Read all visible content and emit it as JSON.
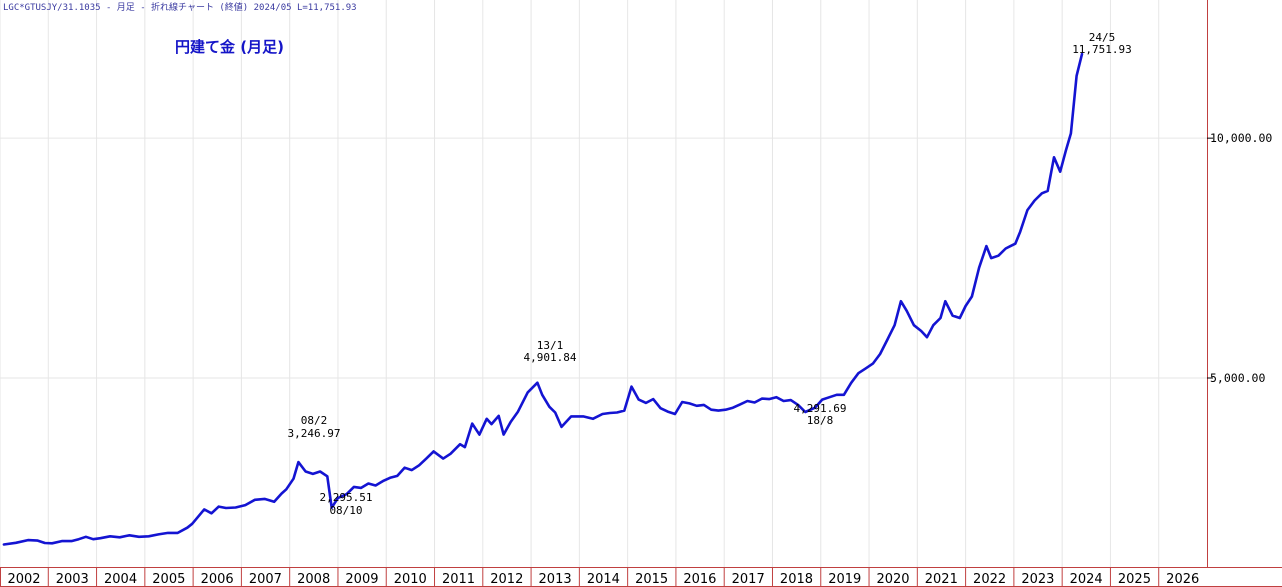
{
  "header": {
    "info_line": "LGC*GTUSJY/31.1035 - 月足 - 折れ線チャート (終値) 2024/05 L=11,751.93"
  },
  "colors": {
    "line": "#1414d2",
    "frame": "#c04040",
    "grid": "#e6e6e6",
    "title": "#1515c8"
  },
  "chart_data": {
    "type": "line",
    "title": "円建て金 (月足)",
    "xlabel": "",
    "ylabel": "",
    "x_range": [
      2001.92,
      2026.92
    ],
    "ylim": [
      1060,
      12880
    ],
    "grid": "on",
    "y_axis_side": "right",
    "y_tick_values": [
      5000,
      10000
    ],
    "y_tick_labels": [
      "5,000.00",
      "10,000.00"
    ],
    "x_tick_labels": [
      "2002",
      "2003",
      "2004",
      "2005",
      "2006",
      "2007",
      "2008",
      "2009",
      "2010",
      "2011",
      "2012",
      "2013",
      "2014",
      "2015",
      "2016",
      "2017",
      "2018",
      "2019",
      "2020",
      "2021",
      "2022",
      "2023",
      "2024",
      "2025",
      "2026"
    ],
    "series": [
      {
        "points": [
          [
            2002.0,
            1530
          ],
          [
            2002.25,
            1565
          ],
          [
            2002.5,
            1620
          ],
          [
            2002.7,
            1610
          ],
          [
            2002.85,
            1560
          ],
          [
            2003.0,
            1555
          ],
          [
            2003.2,
            1600
          ],
          [
            2003.4,
            1600
          ],
          [
            2003.55,
            1640
          ],
          [
            2003.7,
            1690
          ],
          [
            2003.85,
            1640
          ],
          [
            2004.0,
            1660
          ],
          [
            2004.2,
            1700
          ],
          [
            2004.4,
            1680
          ],
          [
            2004.6,
            1720
          ],
          [
            2004.8,
            1690
          ],
          [
            2005.0,
            1700
          ],
          [
            2005.2,
            1740
          ],
          [
            2005.4,
            1770
          ],
          [
            2005.6,
            1770
          ],
          [
            2005.8,
            1880
          ],
          [
            2005.9,
            1960
          ],
          [
            2006.0,
            2080
          ],
          [
            2006.15,
            2260
          ],
          [
            2006.3,
            2180
          ],
          [
            2006.45,
            2320
          ],
          [
            2006.6,
            2290
          ],
          [
            2006.8,
            2300
          ],
          [
            2007.0,
            2350
          ],
          [
            2007.2,
            2460
          ],
          [
            2007.4,
            2480
          ],
          [
            2007.6,
            2420
          ],
          [
            2007.75,
            2590
          ],
          [
            2007.85,
            2680
          ],
          [
            2008.0,
            2900
          ],
          [
            2008.1,
            3247
          ],
          [
            2008.25,
            3050
          ],
          [
            2008.4,
            3000
          ],
          [
            2008.55,
            3050
          ],
          [
            2008.7,
            2950
          ],
          [
            2008.79,
            2296
          ],
          [
            2008.92,
            2500
          ],
          [
            2009.1,
            2580
          ],
          [
            2009.25,
            2730
          ],
          [
            2009.4,
            2710
          ],
          [
            2009.55,
            2800
          ],
          [
            2009.7,
            2760
          ],
          [
            2009.85,
            2850
          ],
          [
            2010.0,
            2920
          ],
          [
            2010.15,
            2960
          ],
          [
            2010.3,
            3130
          ],
          [
            2010.45,
            3080
          ],
          [
            2010.6,
            3180
          ],
          [
            2010.75,
            3320
          ],
          [
            2010.9,
            3470
          ],
          [
            2011.1,
            3320
          ],
          [
            2011.25,
            3420
          ],
          [
            2011.45,
            3620
          ],
          [
            2011.55,
            3560
          ],
          [
            2011.7,
            4050
          ],
          [
            2011.85,
            3820
          ],
          [
            2012.0,
            4150
          ],
          [
            2012.1,
            4040
          ],
          [
            2012.25,
            4210
          ],
          [
            2012.35,
            3820
          ],
          [
            2012.5,
            4090
          ],
          [
            2012.65,
            4300
          ],
          [
            2012.85,
            4700
          ],
          [
            2013.05,
            4902
          ],
          [
            2013.15,
            4650
          ],
          [
            2013.3,
            4400
          ],
          [
            2013.42,
            4280
          ],
          [
            2013.55,
            3980
          ],
          [
            2013.75,
            4200
          ],
          [
            2014.0,
            4200
          ],
          [
            2014.2,
            4150
          ],
          [
            2014.4,
            4250
          ],
          [
            2014.55,
            4270
          ],
          [
            2014.7,
            4280
          ],
          [
            2014.85,
            4320
          ],
          [
            2015.0,
            4820
          ],
          [
            2015.15,
            4550
          ],
          [
            2015.3,
            4480
          ],
          [
            2015.45,
            4560
          ],
          [
            2015.6,
            4370
          ],
          [
            2015.75,
            4300
          ],
          [
            2015.9,
            4250
          ],
          [
            2016.05,
            4500
          ],
          [
            2016.2,
            4470
          ],
          [
            2016.35,
            4420
          ],
          [
            2016.5,
            4440
          ],
          [
            2016.65,
            4340
          ],
          [
            2016.8,
            4320
          ],
          [
            2016.95,
            4340
          ],
          [
            2017.1,
            4380
          ],
          [
            2017.25,
            4450
          ],
          [
            2017.4,
            4520
          ],
          [
            2017.55,
            4490
          ],
          [
            2017.7,
            4570
          ],
          [
            2017.85,
            4560
          ],
          [
            2018.0,
            4600
          ],
          [
            2018.15,
            4520
          ],
          [
            2018.3,
            4540
          ],
          [
            2018.45,
            4440
          ],
          [
            2018.6,
            4292
          ],
          [
            2018.8,
            4380
          ],
          [
            2018.95,
            4550
          ],
          [
            2019.1,
            4600
          ],
          [
            2019.25,
            4650
          ],
          [
            2019.4,
            4650
          ],
          [
            2019.55,
            4900
          ],
          [
            2019.7,
            5100
          ],
          [
            2019.85,
            5200
          ],
          [
            2020.0,
            5300
          ],
          [
            2020.15,
            5500
          ],
          [
            2020.3,
            5800
          ],
          [
            2020.45,
            6100
          ],
          [
            2020.58,
            6600
          ],
          [
            2020.7,
            6400
          ],
          [
            2020.85,
            6100
          ],
          [
            2021.0,
            5980
          ],
          [
            2021.12,
            5850
          ],
          [
            2021.25,
            6100
          ],
          [
            2021.4,
            6250
          ],
          [
            2021.5,
            6600
          ],
          [
            2021.65,
            6300
          ],
          [
            2021.8,
            6250
          ],
          [
            2021.92,
            6500
          ],
          [
            2022.05,
            6700
          ],
          [
            2022.2,
            7300
          ],
          [
            2022.35,
            7750
          ],
          [
            2022.45,
            7500
          ],
          [
            2022.6,
            7550
          ],
          [
            2022.75,
            7700
          ],
          [
            2022.85,
            7750
          ],
          [
            2022.95,
            7800
          ],
          [
            2023.05,
            8050
          ],
          [
            2023.2,
            8500
          ],
          [
            2023.35,
            8700
          ],
          [
            2023.5,
            8850
          ],
          [
            2023.62,
            8900
          ],
          [
            2023.75,
            9600
          ],
          [
            2023.88,
            9300
          ],
          [
            2024.0,
            9750
          ],
          [
            2024.1,
            10100
          ],
          [
            2024.22,
            11300
          ],
          [
            2024.33,
            11752
          ]
        ]
      }
    ],
    "annotations": [
      {
        "id": "peak-2008",
        "date": "08/2",
        "value": "3,246.97"
      },
      {
        "id": "low-2008",
        "date": "08/10",
        "value": "2,295.51"
      },
      {
        "id": "peak-2013",
        "date": "13/1",
        "value": "4,901.84"
      },
      {
        "id": "low-2018",
        "date": "18/8",
        "value": "4,291.69"
      },
      {
        "id": "last-2024",
        "date": "24/5",
        "value": "11,751.93"
      }
    ]
  }
}
